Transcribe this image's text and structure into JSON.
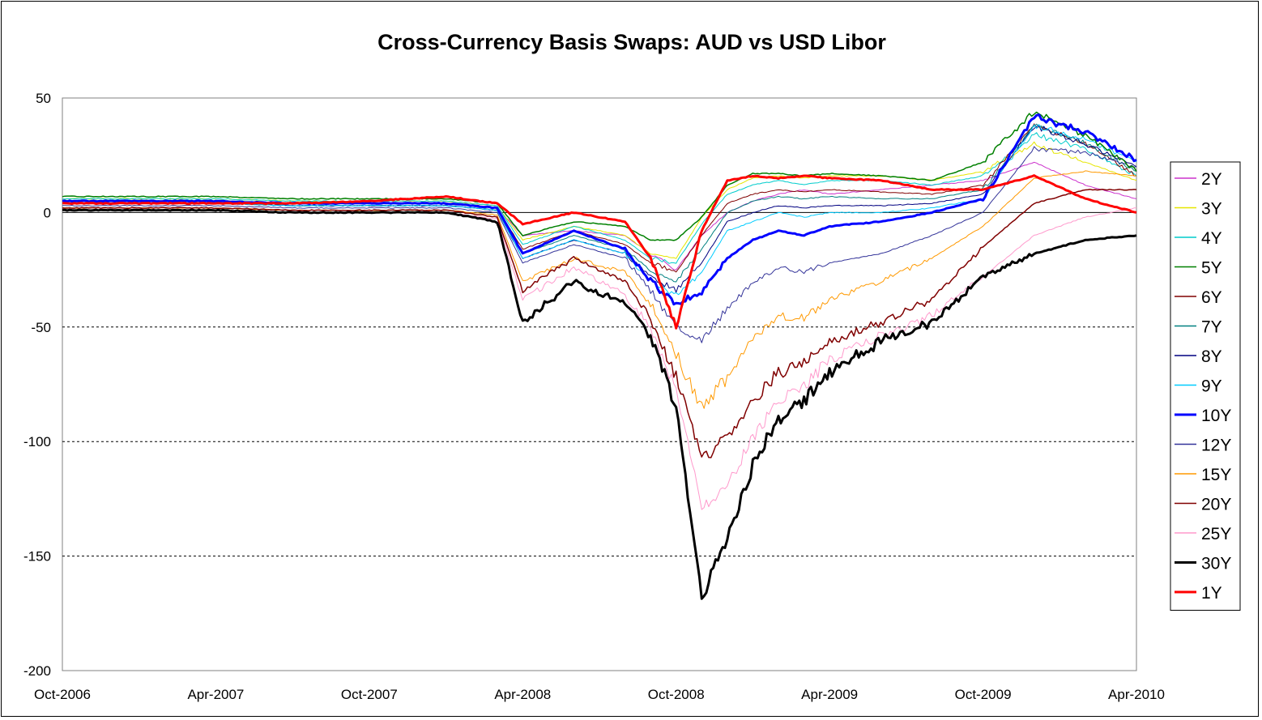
{
  "chart_data": {
    "type": "line",
    "title": "Cross-Currency Basis Swaps: AUD vs USD Libor",
    "xlabel": "",
    "ylabel": "",
    "ylim": [
      -200,
      50
    ],
    "yticks": [
      50,
      0,
      -50,
      -100,
      -150,
      -200
    ],
    "xlim": [
      "2006-10",
      "2010-04"
    ],
    "xticks": [
      "Oct-2006",
      "Apr-2007",
      "Oct-2007",
      "Apr-2008",
      "Oct-2008",
      "Apr-2009",
      "Oct-2009",
      "Apr-2010"
    ],
    "grid": "horizontal dashed at -50, -100, -150",
    "legend_position": "right",
    "x": [
      "Oct-2006",
      "Jan-2007",
      "Apr-2007",
      "Jul-2007",
      "Oct-2007",
      "Jan-2008",
      "Mar-2008",
      "Apr-2008",
      "Jun-2008",
      "Aug-2008",
      "Sep-2008",
      "Oct-2008",
      "Nov-2008",
      "Dec-2008",
      "Jan-2009",
      "Feb-2009",
      "Mar-2009",
      "Apr-2009",
      "Jun-2009",
      "Aug-2009",
      "Oct-2009",
      "Dec-2009",
      "Feb-2010",
      "Apr-2010"
    ],
    "series": [
      {
        "name": "2Y",
        "color": "#cc33cc",
        "width": 1,
        "values": [
          5,
          5,
          5,
          4,
          4,
          4,
          2,
          -10,
          -8,
          -10,
          -18,
          -25,
          -10,
          0,
          5,
          8,
          10,
          8,
          10,
          12,
          14,
          22,
          12,
          6
        ]
      },
      {
        "name": "3Y",
        "color": "#e6e600",
        "width": 1,
        "values": [
          6,
          6,
          6,
          5,
          5,
          5,
          3,
          -12,
          -6,
          -10,
          -18,
          -20,
          -2,
          10,
          15,
          16,
          15,
          16,
          16,
          14,
          18,
          30,
          22,
          14
        ]
      },
      {
        "name": "4Y",
        "color": "#00cccc",
        "width": 1,
        "values": [
          6,
          6,
          6,
          5,
          5,
          5,
          3,
          -14,
          -6,
          -12,
          -20,
          -22,
          -5,
          8,
          12,
          14,
          12,
          14,
          14,
          12,
          16,
          34,
          28,
          16
        ]
      },
      {
        "name": "5Y",
        "color": "#008000",
        "width": 1.5,
        "values": [
          7,
          7,
          7,
          6,
          6,
          6,
          4,
          -10,
          -4,
          -6,
          -12,
          -12,
          -2,
          12,
          17,
          17,
          16,
          17,
          16,
          14,
          22,
          44,
          34,
          18
        ]
      },
      {
        "name": "6Y",
        "color": "#800000",
        "width": 1,
        "values": [
          5,
          5,
          5,
          4,
          4,
          4,
          2,
          -16,
          -8,
          -14,
          -22,
          -26,
          -10,
          4,
          8,
          10,
          9,
          10,
          9,
          8,
          12,
          38,
          30,
          16
        ]
      },
      {
        "name": "7Y",
        "color": "#008080",
        "width": 1,
        "values": [
          4,
          4,
          4,
          3,
          3,
          3,
          1,
          -18,
          -10,
          -16,
          -26,
          -30,
          -16,
          0,
          5,
          7,
          6,
          7,
          6,
          6,
          10,
          38,
          30,
          18
        ]
      },
      {
        "name": "8Y",
        "color": "#000080",
        "width": 1,
        "values": [
          4,
          4,
          4,
          3,
          3,
          3,
          1,
          -20,
          -12,
          -18,
          -28,
          -34,
          -22,
          -4,
          0,
          3,
          2,
          3,
          3,
          4,
          8,
          38,
          30,
          20
        ]
      },
      {
        "name": "9Y",
        "color": "#00ccff",
        "width": 1,
        "values": [
          4,
          4,
          4,
          3,
          3,
          3,
          1,
          -20,
          -12,
          -18,
          -30,
          -36,
          -26,
          -8,
          -4,
          0,
          -2,
          0,
          0,
          2,
          6,
          38,
          32,
          22
        ]
      },
      {
        "name": "10Y",
        "color": "#0000ff",
        "width": 3,
        "values": [
          5,
          5,
          5,
          4,
          4,
          4,
          2,
          -18,
          -8,
          -16,
          -30,
          -40,
          -35,
          -20,
          -12,
          -8,
          -10,
          -6,
          -4,
          0,
          6,
          42,
          35,
          23
        ]
      },
      {
        "name": "12Y",
        "color": "#333399",
        "width": 1,
        "values": [
          3,
          3,
          3,
          2,
          2,
          2,
          0,
          -22,
          -14,
          -20,
          -34,
          -50,
          -55,
          -42,
          -30,
          -24,
          -26,
          -22,
          -18,
          -10,
          0,
          28,
          26,
          20
        ]
      },
      {
        "name": "15Y",
        "color": "#ff9900",
        "width": 1,
        "values": [
          2,
          2,
          2,
          1,
          1,
          1,
          -1,
          -30,
          -20,
          -26,
          -40,
          -62,
          -85,
          -72,
          -55,
          -45,
          -46,
          -38,
          -30,
          -20,
          -6,
          15,
          18,
          16
        ]
      },
      {
        "name": "20Y",
        "color": "#800000",
        "width": 1.5,
        "values": [
          2,
          2,
          2,
          1,
          1,
          1,
          -2,
          -34,
          -20,
          -30,
          -46,
          -72,
          -108,
          -98,
          -82,
          -70,
          -66,
          -56,
          -48,
          -38,
          -15,
          4,
          10,
          10
        ]
      },
      {
        "name": "25Y",
        "color": "#ff99cc",
        "width": 1,
        "values": [
          1,
          1,
          1,
          0,
          0,
          0,
          -3,
          -38,
          -24,
          -36,
          -50,
          -78,
          -130,
          -120,
          -98,
          -82,
          -76,
          -64,
          -54,
          -45,
          -28,
          -10,
          -2,
          2
        ]
      },
      {
        "name": "30Y",
        "color": "#000000",
        "width": 3,
        "values": [
          1,
          1,
          1,
          0,
          0,
          0,
          -4,
          -48,
          -30,
          -40,
          -54,
          -85,
          -168,
          -143,
          -110,
          -90,
          -82,
          -70,
          -56,
          -48,
          -28,
          -18,
          -12,
          -10
        ]
      },
      {
        "name": "1Y",
        "color": "#ff0000",
        "width": 3,
        "values": [
          4,
          4,
          4,
          4,
          5,
          7,
          4,
          -5,
          0,
          -4,
          -20,
          -50,
          -8,
          14,
          16,
          15,
          16,
          15,
          14,
          10,
          10,
          16,
          6,
          0
        ]
      }
    ]
  }
}
